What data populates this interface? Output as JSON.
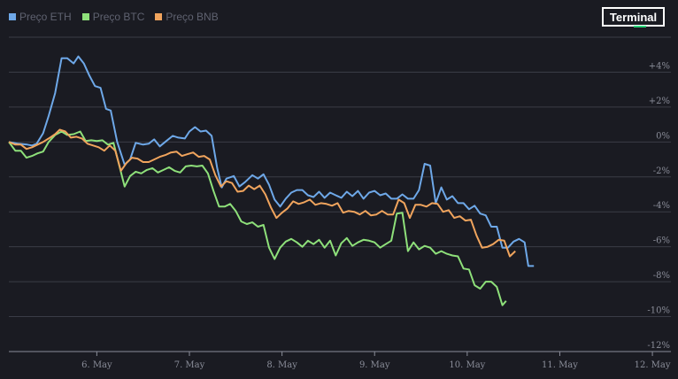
{
  "legend": [
    {
      "label": "Preço ETH",
      "color": "#6ea8e8"
    },
    {
      "label": "Preço BTC",
      "color": "#8ee07a"
    },
    {
      "label": "Preço BNB",
      "color": "#f0a45d"
    }
  ],
  "logo": {
    "text": "Terminal",
    "accent": "#2bd67b"
  },
  "chart_data": {
    "type": "line",
    "title": "",
    "xlabel": "",
    "ylabel": "",
    "x_ticks": [
      "6. May",
      "7. May",
      "8. May",
      "9. May",
      "10. May",
      "11. May",
      "12. May"
    ],
    "y_ticks": [
      "+4%",
      "+2%",
      "0%",
      "-2%",
      "-4%",
      "-6%",
      "-8%",
      "-10%",
      "-12%"
    ],
    "ylim": [
      -12,
      6
    ],
    "xlim": [
      5.05,
      12.2
    ],
    "grid": true,
    "legend_position": "top-left",
    "series": [
      {
        "name": "Preço ETH",
        "color": "#6ea8e8",
        "points": [
          [
            5.05,
            0
          ],
          [
            5.15,
            -0.1
          ],
          [
            5.25,
            -0.15
          ],
          [
            5.3,
            -0.2
          ],
          [
            5.35,
            -0.1
          ],
          [
            5.42,
            0.5
          ],
          [
            5.48,
            1.5
          ],
          [
            5.55,
            2.8
          ],
          [
            5.62,
            4.8
          ],
          [
            5.68,
            4.8
          ],
          [
            5.75,
            4.5
          ],
          [
            5.8,
            4.9
          ],
          [
            5.86,
            4.5
          ],
          [
            5.92,
            3.8
          ],
          [
            5.98,
            3.2
          ],
          [
            6.04,
            3.1
          ],
          [
            6.1,
            1.9
          ],
          [
            6.15,
            1.8
          ],
          [
            6.22,
            0
          ],
          [
            6.3,
            -1.3
          ],
          [
            6.36,
            -1
          ],
          [
            6.42,
            -0.05
          ],
          [
            6.5,
            -0.15
          ],
          [
            6.56,
            -0.1
          ],
          [
            6.62,
            0.15
          ],
          [
            6.68,
            -0.25
          ],
          [
            6.75,
            0.05
          ],
          [
            6.82,
            0.35
          ],
          [
            6.88,
            0.25
          ],
          [
            6.95,
            0.2
          ],
          [
            7.0,
            0.6
          ],
          [
            7.06,
            0.85
          ],
          [
            7.12,
            0.6
          ],
          [
            7.18,
            0.65
          ],
          [
            7.24,
            0.35
          ],
          [
            7.3,
            -1.5
          ],
          [
            7.35,
            -2.6
          ],
          [
            7.4,
            -2.1
          ],
          [
            7.48,
            -1.95
          ],
          [
            7.54,
            -2.55
          ],
          [
            7.6,
            -2.3
          ],
          [
            7.68,
            -1.9
          ],
          [
            7.74,
            -2.1
          ],
          [
            7.8,
            -1.85
          ],
          [
            7.86,
            -2.45
          ],
          [
            7.92,
            -3.3
          ],
          [
            7.98,
            -3.7
          ],
          [
            8.04,
            -3.25
          ],
          [
            8.1,
            -2.9
          ],
          [
            8.16,
            -2.75
          ],
          [
            8.22,
            -2.75
          ],
          [
            8.28,
            -3.05
          ],
          [
            8.34,
            -3.15
          ],
          [
            8.4,
            -2.85
          ],
          [
            8.46,
            -3.2
          ],
          [
            8.52,
            -2.9
          ],
          [
            8.58,
            -3.05
          ],
          [
            8.64,
            -3.2
          ],
          [
            8.7,
            -2.85
          ],
          [
            8.76,
            -3.1
          ],
          [
            8.82,
            -2.8
          ],
          [
            8.88,
            -3.25
          ],
          [
            8.94,
            -2.9
          ],
          [
            9.0,
            -2.8
          ],
          [
            9.06,
            -3.05
          ],
          [
            9.12,
            -2.95
          ],
          [
            9.18,
            -3.25
          ],
          [
            9.24,
            -3.25
          ],
          [
            9.3,
            -3.0
          ],
          [
            9.36,
            -3.25
          ],
          [
            9.42,
            -3.25
          ],
          [
            9.48,
            -2.75
          ],
          [
            9.54,
            -1.25
          ],
          [
            9.6,
            -1.35
          ],
          [
            9.66,
            -3.5
          ],
          [
            9.72,
            -2.6
          ],
          [
            9.78,
            -3.3
          ],
          [
            9.84,
            -3.1
          ],
          [
            9.9,
            -3.5
          ],
          [
            9.96,
            -3.5
          ],
          [
            10.02,
            -3.85
          ],
          [
            10.08,
            -3.65
          ],
          [
            10.14,
            -4.1
          ],
          [
            10.2,
            -4.2
          ],
          [
            10.26,
            -4.85
          ],
          [
            10.32,
            -4.85
          ],
          [
            10.38,
            -6.05
          ],
          [
            10.44,
            -6.05
          ],
          [
            10.5,
            -5.7
          ],
          [
            10.56,
            -5.55
          ],
          [
            10.62,
            -5.75
          ],
          [
            10.66,
            -7.1
          ],
          [
            10.72,
            -7.1
          ]
        ]
      },
      {
        "name": "Preço BTC",
        "color": "#8ee07a",
        "points": [
          [
            5.05,
            0
          ],
          [
            5.12,
            -0.5
          ],
          [
            5.18,
            -0.5
          ],
          [
            5.24,
            -0.9
          ],
          [
            5.3,
            -0.8
          ],
          [
            5.36,
            -0.65
          ],
          [
            5.42,
            -0.55
          ],
          [
            5.48,
            0
          ],
          [
            5.55,
            0.4
          ],
          [
            5.62,
            0.6
          ],
          [
            5.68,
            0.4
          ],
          [
            5.75,
            0.45
          ],
          [
            5.82,
            0.6
          ],
          [
            5.88,
            0.05
          ],
          [
            5.94,
            0.1
          ],
          [
            6.0,
            0.05
          ],
          [
            6.06,
            0.1
          ],
          [
            6.12,
            -0.15
          ],
          [
            6.18,
            -0.05
          ],
          [
            6.24,
            -1.3
          ],
          [
            6.3,
            -2.55
          ],
          [
            6.36,
            -1.95
          ],
          [
            6.42,
            -1.7
          ],
          [
            6.48,
            -1.8
          ],
          [
            6.54,
            -1.6
          ],
          [
            6.6,
            -1.5
          ],
          [
            6.66,
            -1.75
          ],
          [
            6.72,
            -1.6
          ],
          [
            6.78,
            -1.45
          ],
          [
            6.84,
            -1.65
          ],
          [
            6.9,
            -1.75
          ],
          [
            6.96,
            -1.4
          ],
          [
            7.02,
            -1.35
          ],
          [
            7.08,
            -1.4
          ],
          [
            7.14,
            -1.35
          ],
          [
            7.2,
            -1.8
          ],
          [
            7.26,
            -2.8
          ],
          [
            7.32,
            -3.7
          ],
          [
            7.38,
            -3.7
          ],
          [
            7.44,
            -3.55
          ],
          [
            7.5,
            -3.95
          ],
          [
            7.56,
            -4.55
          ],
          [
            7.62,
            -4.7
          ],
          [
            7.68,
            -4.6
          ],
          [
            7.74,
            -4.85
          ],
          [
            7.8,
            -4.75
          ],
          [
            7.86,
            -6.05
          ],
          [
            7.92,
            -6.7
          ],
          [
            7.98,
            -6.05
          ],
          [
            8.04,
            -5.7
          ],
          [
            8.1,
            -5.55
          ],
          [
            8.16,
            -5.75
          ],
          [
            8.22,
            -6.0
          ],
          [
            8.28,
            -5.65
          ],
          [
            8.34,
            -5.85
          ],
          [
            8.4,
            -5.6
          ],
          [
            8.46,
            -6.05
          ],
          [
            8.52,
            -5.65
          ],
          [
            8.58,
            -6.5
          ],
          [
            8.64,
            -5.8
          ],
          [
            8.7,
            -5.5
          ],
          [
            8.76,
            -5.95
          ],
          [
            8.82,
            -5.75
          ],
          [
            8.88,
            -5.6
          ],
          [
            8.94,
            -5.65
          ],
          [
            9.0,
            -5.75
          ],
          [
            9.06,
            -6.05
          ],
          [
            9.12,
            -5.85
          ],
          [
            9.18,
            -5.65
          ],
          [
            9.24,
            -4.1
          ],
          [
            9.3,
            -4.05
          ],
          [
            9.36,
            -6.25
          ],
          [
            9.42,
            -5.75
          ],
          [
            9.48,
            -6.15
          ],
          [
            9.54,
            -5.95
          ],
          [
            9.6,
            -6.05
          ],
          [
            9.66,
            -6.4
          ],
          [
            9.72,
            -6.25
          ],
          [
            9.78,
            -6.4
          ],
          [
            9.84,
            -6.5
          ],
          [
            9.9,
            -6.55
          ],
          [
            9.96,
            -7.25
          ],
          [
            10.02,
            -7.3
          ],
          [
            10.08,
            -8.2
          ],
          [
            10.14,
            -8.4
          ],
          [
            10.2,
            -8.0
          ],
          [
            10.26,
            -8.0
          ],
          [
            10.32,
            -8.3
          ],
          [
            10.38,
            -9.35
          ],
          [
            10.42,
            -9.1
          ]
        ]
      },
      {
        "name": "Preço BNB",
        "color": "#f0a45d",
        "points": [
          [
            5.05,
            0
          ],
          [
            5.12,
            -0.15
          ],
          [
            5.18,
            -0.15
          ],
          [
            5.24,
            -0.4
          ],
          [
            5.3,
            -0.3
          ],
          [
            5.36,
            -0.15
          ],
          [
            5.42,
            0
          ],
          [
            5.48,
            0.2
          ],
          [
            5.55,
            0.45
          ],
          [
            5.6,
            0.7
          ],
          [
            5.66,
            0.6
          ],
          [
            5.72,
            0.25
          ],
          [
            5.78,
            0.3
          ],
          [
            5.84,
            0.2
          ],
          [
            5.9,
            -0.1
          ],
          [
            5.96,
            -0.2
          ],
          [
            6.02,
            -0.3
          ],
          [
            6.08,
            -0.5
          ],
          [
            6.14,
            -0.2
          ],
          [
            6.2,
            -0.5
          ],
          [
            6.26,
            -1.65
          ],
          [
            6.32,
            -1.2
          ],
          [
            6.38,
            -0.9
          ],
          [
            6.44,
            -0.95
          ],
          [
            6.5,
            -1.15
          ],
          [
            6.56,
            -1.15
          ],
          [
            6.62,
            -1.0
          ],
          [
            6.68,
            -0.85
          ],
          [
            6.74,
            -0.75
          ],
          [
            6.8,
            -0.6
          ],
          [
            6.86,
            -0.55
          ],
          [
            6.92,
            -0.8
          ],
          [
            6.98,
            -0.7
          ],
          [
            7.04,
            -0.6
          ],
          [
            7.1,
            -0.85
          ],
          [
            7.16,
            -0.8
          ],
          [
            7.22,
            -1.0
          ],
          [
            7.28,
            -1.9
          ],
          [
            7.34,
            -2.55
          ],
          [
            7.4,
            -2.25
          ],
          [
            7.46,
            -2.35
          ],
          [
            7.52,
            -2.85
          ],
          [
            7.58,
            -2.8
          ],
          [
            7.64,
            -2.5
          ],
          [
            7.7,
            -2.7
          ],
          [
            7.76,
            -2.5
          ],
          [
            7.82,
            -3.0
          ],
          [
            7.88,
            -3.75
          ],
          [
            7.94,
            -4.35
          ],
          [
            8.0,
            -4.05
          ],
          [
            8.06,
            -3.8
          ],
          [
            8.12,
            -3.4
          ],
          [
            8.18,
            -3.55
          ],
          [
            8.24,
            -3.45
          ],
          [
            8.3,
            -3.3
          ],
          [
            8.36,
            -3.6
          ],
          [
            8.42,
            -3.5
          ],
          [
            8.48,
            -3.55
          ],
          [
            8.54,
            -3.65
          ],
          [
            8.6,
            -3.5
          ],
          [
            8.66,
            -4.05
          ],
          [
            8.72,
            -3.95
          ],
          [
            8.78,
            -4.0
          ],
          [
            8.84,
            -4.15
          ],
          [
            8.9,
            -3.95
          ],
          [
            8.96,
            -4.2
          ],
          [
            9.02,
            -4.15
          ],
          [
            9.08,
            -3.95
          ],
          [
            9.14,
            -4.15
          ],
          [
            9.2,
            -4.15
          ],
          [
            9.26,
            -3.3
          ],
          [
            9.32,
            -3.5
          ],
          [
            9.38,
            -4.35
          ],
          [
            9.44,
            -3.6
          ],
          [
            9.5,
            -3.6
          ],
          [
            9.56,
            -3.7
          ],
          [
            9.62,
            -3.5
          ],
          [
            9.68,
            -3.55
          ],
          [
            9.74,
            -4.0
          ],
          [
            9.8,
            -3.9
          ],
          [
            9.86,
            -4.35
          ],
          [
            9.92,
            -4.25
          ],
          [
            9.98,
            -4.5
          ],
          [
            10.04,
            -4.45
          ],
          [
            10.1,
            -5.35
          ],
          [
            10.16,
            -6.05
          ],
          [
            10.22,
            -6.0
          ],
          [
            10.28,
            -5.85
          ],
          [
            10.34,
            -5.6
          ],
          [
            10.4,
            -5.65
          ],
          [
            10.46,
            -6.55
          ],
          [
            10.52,
            -6.25
          ]
        ]
      }
    ]
  }
}
